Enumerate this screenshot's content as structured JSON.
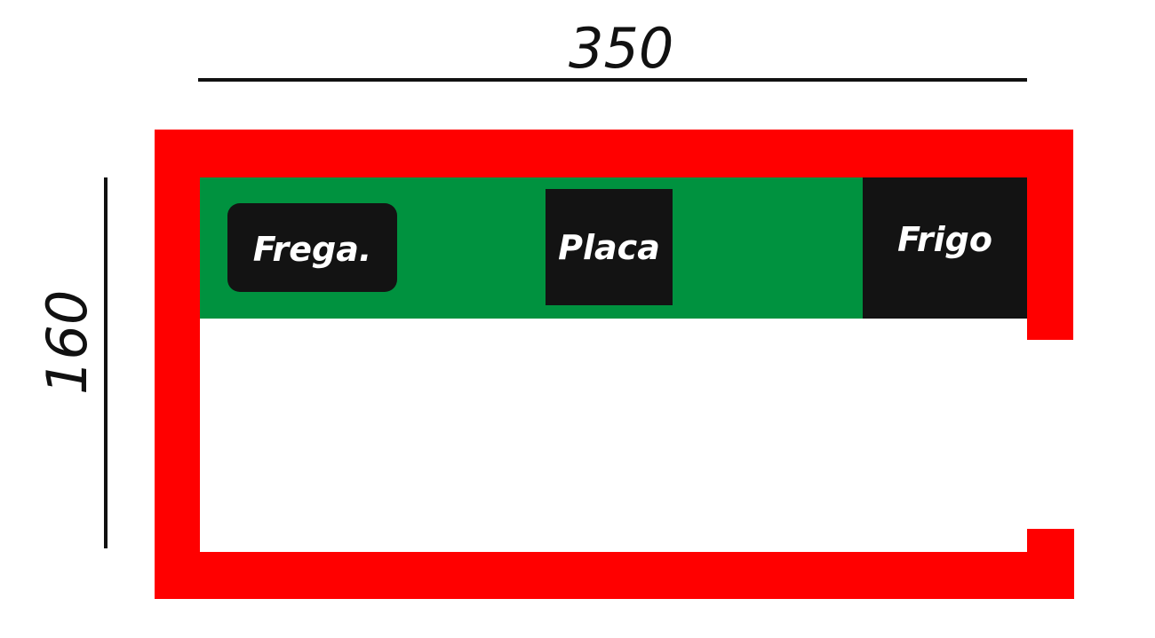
{
  "dimensions": {
    "width_label": "350",
    "height_label": "160"
  },
  "appliances": {
    "sink": "Frega.",
    "hob": "Placa",
    "fridge": "Frigo"
  },
  "colors": {
    "walls": "#ff0000",
    "counter": "#00923f",
    "appliance": "#131313",
    "dimension_line": "#111111"
  }
}
